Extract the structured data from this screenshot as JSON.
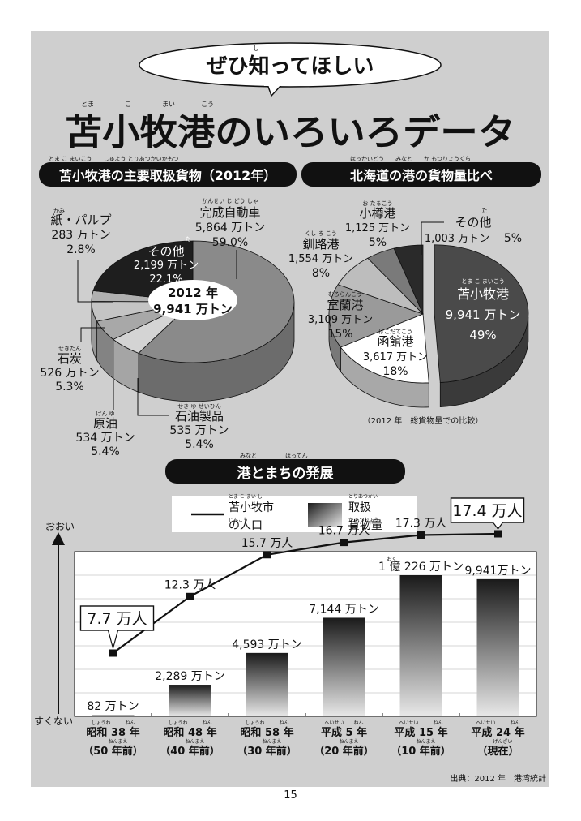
{
  "bubble_title": "ぜひ知ってほしい",
  "bubble_ruby": "し",
  "main_title": "苫小牧港のいろいろデータ",
  "main_title_ruby": [
    "とま",
    "こ",
    "まい",
    "こう"
  ],
  "page_number": "15",
  "source": "出典：2012 年　港湾統計",
  "chart_data": [
    {
      "type": "pie",
      "title": "苫小牧港の主要取扱貨物（2012年）",
      "title_ruby": "とま こ まいこう　　しゅよう とりあつかいかもつ",
      "center_label": [
        "2012 年",
        "9,941 万トン"
      ],
      "slices": [
        {
          "name": "完成自動車",
          "ruby": "かんせい じ どう しゃ",
          "amount": "5,864 万トン",
          "percent": 59.0,
          "percent_label": "59.0%",
          "color": "#8a8a8a"
        },
        {
          "name": "石油製品",
          "ruby": "せき ゆ せいひん",
          "amount": "535 万トン",
          "percent": 5.4,
          "percent_label": "5.4%",
          "color": "#d4d4d4"
        },
        {
          "name": "原油",
          "ruby": "げん ゆ",
          "amount": "534 万トン",
          "percent": 5.4,
          "percent_label": "5.4%",
          "color": "#a8a8a8"
        },
        {
          "name": "石炭",
          "ruby": "せきたん",
          "amount": "526 万トン",
          "percent": 5.3,
          "percent_label": "5.3%",
          "color": "#c4c4c4"
        },
        {
          "name": "紙・パルプ",
          "ruby": "かみ",
          "amount": "283 万トン",
          "percent": 2.8,
          "percent_label": "2.8%",
          "color": "#b0b0b0"
        },
        {
          "name": "その他",
          "ruby": "た",
          "amount": "2,199 万トン",
          "percent": 22.1,
          "percent_label": "22.1%",
          "color": "#1e1e1e"
        }
      ]
    },
    {
      "type": "pie",
      "title": "北海道の港の貨物量比べ",
      "title_ruby": "ほっかいどう　　みなと　　か もつりょうくら",
      "note": "（2012 年　総貨物量での比較）",
      "slices": [
        {
          "name": "苫小牧港",
          "ruby": "とま こ まいこう",
          "amount": "9,941 万トン",
          "percent": 49,
          "percent_label": "49%",
          "color": "#4a4a4a"
        },
        {
          "name": "函館港",
          "ruby": "はこだてこう",
          "amount": "3,617 万トン",
          "percent": 18,
          "percent_label": "18%",
          "color": "#ffffff"
        },
        {
          "name": "室蘭港",
          "ruby": "むろらんこう",
          "amount": "3,109 万トン",
          "percent": 15,
          "percent_label": "15%",
          "color": "#9a9a9a"
        },
        {
          "name": "釧路港",
          "ruby": "くし ろ こう",
          "amount": "1,554 万トン",
          "percent": 8,
          "percent_label": "8%",
          "color": "#bdbdbd"
        },
        {
          "name": "小樽港",
          "ruby": "お たるこう",
          "amount": "1,125 万トン",
          "percent": 5,
          "percent_label": "5%",
          "color": "#7a7a7a"
        },
        {
          "name": "その他",
          "ruby": "た",
          "amount": "1,003 万トン",
          "percent": 5,
          "percent_label": "5%",
          "color": "#2a2a2a"
        }
      ]
    },
    {
      "type": "bar",
      "title": "港とまちの発展",
      "title_ruby": "みなと　　　　　はってん",
      "legend": [
        {
          "label": "苫小牧市の人口",
          "ruby_top": "とま こ まい し",
          "ruby_bottom": "じんこう",
          "style": "line"
        },
        {
          "label": "取扱貨物量",
          "ruby_top": "とりあつかい",
          "ruby_bottom": "か もつりょう",
          "style": "bar"
        }
      ],
      "y_top_label": "おおい",
      "y_bottom_label": "すくない",
      "categories": [
        {
          "era": "昭和 38 年",
          "era_ruby": "しょうわ　　　ねん",
          "ago": "（50 年前）",
          "ago_ruby": "ねんまえ"
        },
        {
          "era": "昭和 48 年",
          "era_ruby": "しょうわ　　　ねん",
          "ago": "（40 年前）",
          "ago_ruby": "ねんまえ"
        },
        {
          "era": "昭和 58 年",
          "era_ruby": "しょうわ　　　ねん",
          "ago": "（30 年前）",
          "ago_ruby": "ねんまえ"
        },
        {
          "era": "平成 5 年",
          "era_ruby": "へいせい　　ねん",
          "ago": "（20 年前）",
          "ago_ruby": "ねんまえ"
        },
        {
          "era": "平成 15 年",
          "era_ruby": "へいせい　　　ねん",
          "ago": "（10 年前）",
          "ago_ruby": "ねんまえ"
        },
        {
          "era": "平成 24 年",
          "era_ruby": "へいせい　　　ねん",
          "ago": "（現在）",
          "ago_ruby": "げんざい"
        }
      ],
      "series": [
        {
          "name": "取扱貨物量",
          "unit": "万トン",
          "values": [
            82,
            2289,
            4593,
            7144,
            10226,
            9941
          ],
          "labels": [
            "82 万トン",
            "2,289 万トン",
            "4,593 万トン",
            "7,144 万トン",
            "1 億 226 万トン",
            "9,941万トン"
          ],
          "label_ruby": [
            "",
            "",
            "",
            "",
            "おく",
            ""
          ]
        },
        {
          "name": "苫小牧市の人口",
          "unit": "万人",
          "values": [
            7.7,
            12.3,
            15.7,
            16.7,
            17.3,
            17.4
          ],
          "labels": [
            "7.7 万人",
            "12.3 万人",
            "15.7 万人",
            "16.7 万人",
            "17.3 万人",
            "17.4 万人"
          ],
          "boxed": [
            true,
            false,
            false,
            false,
            false,
            true
          ]
        }
      ]
    }
  ]
}
